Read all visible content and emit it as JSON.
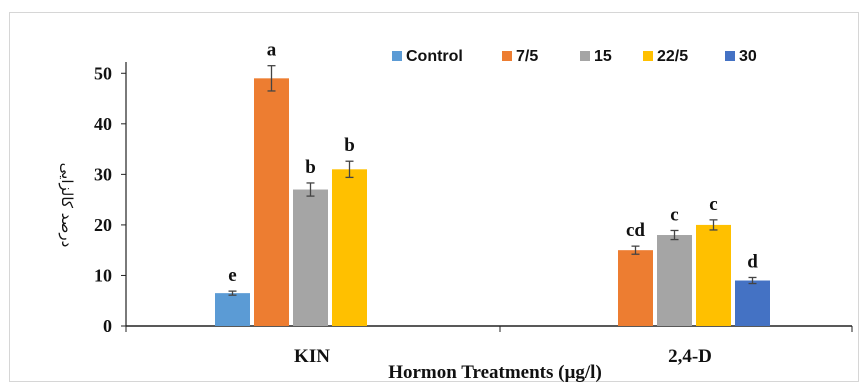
{
  "chart_data": {
    "type": "bar",
    "xlabel": "Hormon Treatments (µg/l)",
    "ylabel": "درصد کالزایی",
    "ylim": [
      0,
      55
    ],
    "yticks": [
      0,
      10,
      20,
      30,
      40,
      50
    ],
    "legend_position": "top",
    "categories": [
      "KIN",
      "2,4-D"
    ],
    "series": [
      {
        "name": "Control",
        "color": "#5b9bd5",
        "values": [
          6.5,
          null
        ],
        "errors": [
          0.4,
          null
        ],
        "labels": [
          "e",
          null
        ]
      },
      {
        "name": "7/5",
        "color": "#ed7d31",
        "values": [
          49,
          15
        ],
        "errors": [
          2.5,
          0.8
        ],
        "labels": [
          "a",
          "cd"
        ]
      },
      {
        "name": "15",
        "color": "#a5a5a5",
        "values": [
          27,
          18
        ],
        "errors": [
          1.3,
          0.9
        ],
        "labels": [
          "b",
          "c"
        ]
      },
      {
        "name": "22/5",
        "color": "#ffc000",
        "values": [
          31,
          20
        ],
        "errors": [
          1.6,
          1.0
        ],
        "labels": [
          "b",
          "c"
        ]
      },
      {
        "name": "30",
        "color": "#4472c4",
        "values": [
          null,
          9
        ],
        "errors": [
          null,
          0.6
        ],
        "labels": [
          null,
          "d"
        ]
      }
    ]
  }
}
